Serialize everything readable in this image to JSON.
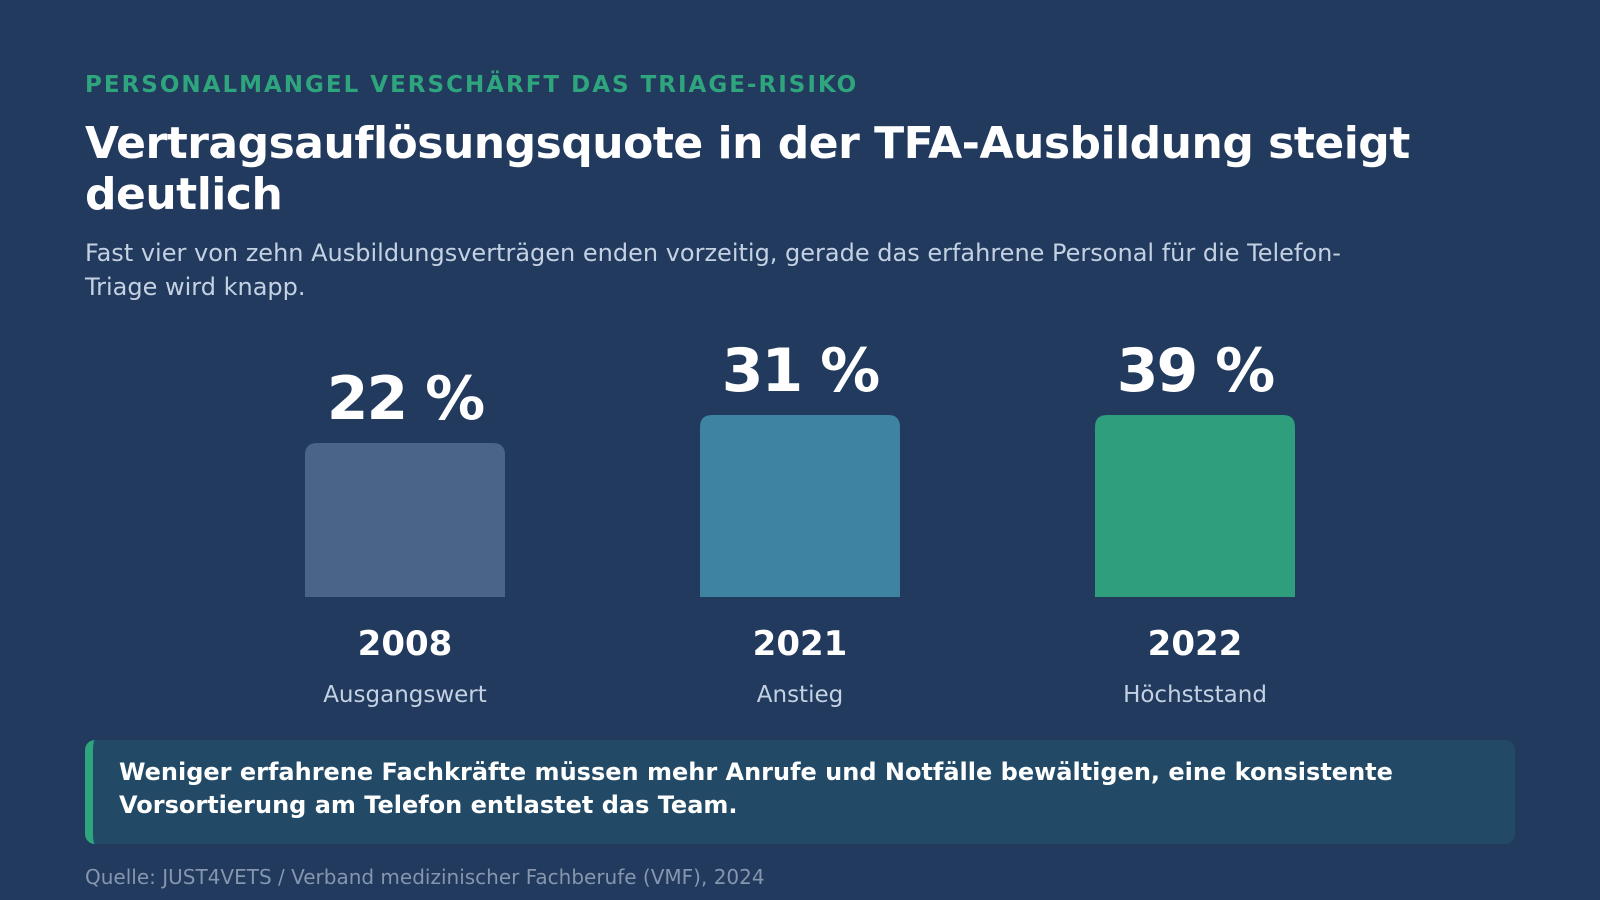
{
  "header": {
    "kicker": "PERSONALMANGEL VERSCHÄRFT DAS TRIAGE-RISIKO",
    "title": "Vertragsauflösungsquote in der TFA-Ausbildung steigt deutlich",
    "subtitle": "Fast vier von zehn Ausbildungsverträgen enden vorzeitig, gerade das erfahrene Personal für die Telefon-Triage wird knapp."
  },
  "chart_data": {
    "type": "bar",
    "categories": [
      "2008",
      "2021",
      "2022"
    ],
    "category_sublabels": [
      "Ausgangswert",
      "Anstieg",
      "Höchststand"
    ],
    "values": [
      22,
      31,
      39
    ],
    "value_labels": [
      "22 %",
      "31 %",
      "39 %"
    ],
    "unit": "%",
    "bar_colors": [
      "#4a6389",
      "#3e83a1",
      "#2e9e7c"
    ],
    "grid": false,
    "legend": "none"
  },
  "callout": {
    "text": "Weniger erfahrene Fachkräfte müssen mehr Anrufe und Notfälle bewältigen, eine konsistente Vorsortierung am Telefon entlastet das Team."
  },
  "source": "Quelle: JUST4VETS / Verband medizinischer Fachberufe (VMF), 2024",
  "colors": {
    "background": "#213a5e",
    "accent": "#2fa57d",
    "callout_background": "#224a66"
  }
}
